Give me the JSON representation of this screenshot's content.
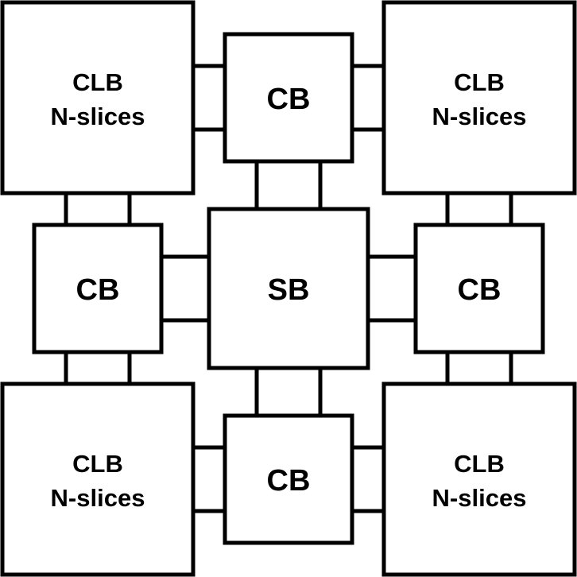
{
  "diagram": {
    "blocks": {
      "clb_top_left": {
        "line1": "CLB",
        "line2": "N-slices"
      },
      "clb_top_right": {
        "line1": "CLB",
        "line2": "N-slices"
      },
      "clb_bottom_left": {
        "line1": "CLB",
        "line2": "N-slices"
      },
      "clb_bottom_right": {
        "line1": "CLB",
        "line2": "N-slices"
      },
      "cb_top": {
        "label": "CB"
      },
      "cb_left": {
        "label": "CB"
      },
      "cb_right": {
        "label": "CB"
      },
      "cb_bottom": {
        "label": "CB"
      },
      "sb_center": {
        "label": "SB"
      }
    },
    "colors": {
      "stroke": "#000000",
      "fill": "#ffffff"
    }
  }
}
